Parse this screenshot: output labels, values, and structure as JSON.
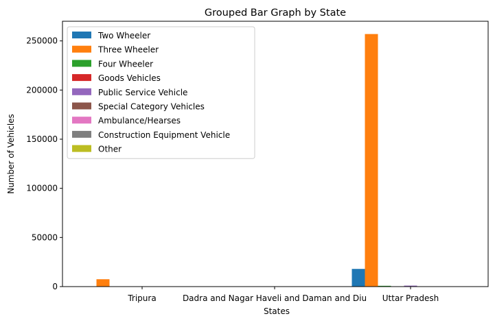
{
  "chart_data": {
    "type": "bar",
    "title": "Grouped Bar Graph by State",
    "xlabel": "States",
    "ylabel": "Number of Vehicles",
    "categories": [
      "Tripura",
      "Dadra and Nagar Haveli and Daman and Diu",
      "Uttar Pradesh"
    ],
    "ylim": [
      0,
      270000
    ],
    "yticks": [
      0,
      50000,
      100000,
      150000,
      200000,
      250000
    ],
    "ytick_labels": [
      "0",
      "50000",
      "100000",
      "150000",
      "200000",
      "250000"
    ],
    "grid": false,
    "legend_position": "top-left",
    "series": [
      {
        "name": "Two Wheeler",
        "color": "#1f77b4",
        "values": [
          200,
          30,
          18000
        ]
      },
      {
        "name": "Three Wheeler",
        "color": "#ff7f0e",
        "values": [
          7500,
          20,
          257000
        ]
      },
      {
        "name": "Four Wheeler",
        "color": "#2ca02c",
        "values": [
          100,
          10,
          800
        ]
      },
      {
        "name": "Goods Vehicles",
        "color": "#d62728",
        "values": [
          50,
          10,
          300
        ]
      },
      {
        "name": "Public Service Vehicle",
        "color": "#9467bd",
        "values": [
          20,
          5,
          1000
        ]
      },
      {
        "name": "Special Category Vehicles",
        "color": "#8c564b",
        "values": [
          5,
          0,
          100
        ]
      },
      {
        "name": "Ambulance/Hearses",
        "color": "#e377c2",
        "values": [
          5,
          0,
          100
        ]
      },
      {
        "name": "Construction Equipment Vehicle",
        "color": "#7f7f7f",
        "values": [
          5,
          0,
          50
        ]
      },
      {
        "name": "Other",
        "color": "#bcbd22",
        "values": [
          5,
          0,
          50
        ]
      }
    ]
  }
}
